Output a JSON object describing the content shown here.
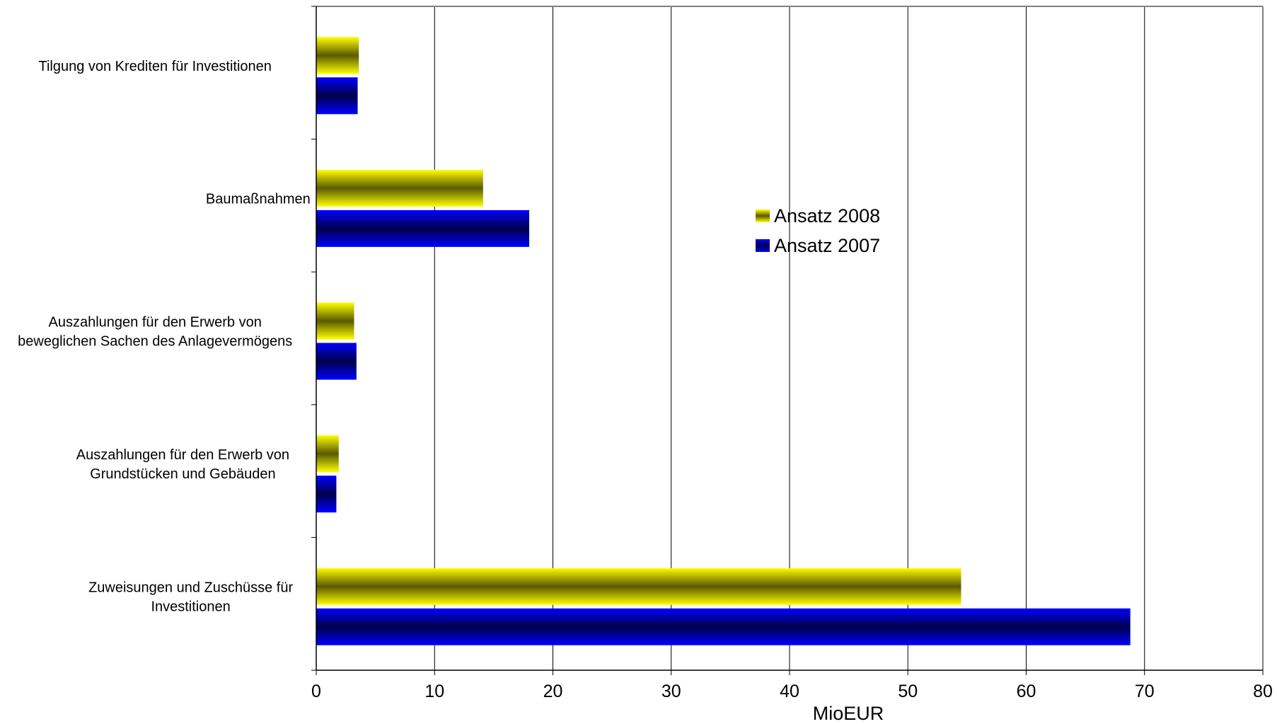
{
  "chart_data": {
    "type": "bar",
    "orientation": "horizontal",
    "title": "",
    "xlabel": "MioEUR",
    "ylabel": "",
    "xlim": [
      0,
      80
    ],
    "x_ticks": [
      "0",
      "10",
      "20",
      "30",
      "40",
      "50",
      "60",
      "70",
      "80"
    ],
    "grid": "vertical",
    "legend_position": "center",
    "categories": [
      [
        "Tilgung von Krediten für Investitionen"
      ],
      [
        "Baumaßnahmen"
      ],
      [
        "Auszahlungen für den Erwerb von",
        "beweglichen Sachen des Anlagevermögens"
      ],
      [
        "Auszahlungen für den Erwerb von",
        "Grundstücken und Gebäuden"
      ],
      [
        "Zuweisungen und Zuschüsse für",
        "Investitionen"
      ]
    ],
    "series": [
      {
        "name": "Ansatz 2008",
        "color": "#ffff00",
        "shade": "#5a5a00",
        "values": [
          3.6,
          14.1,
          3.2,
          1.9,
          54.5
        ]
      },
      {
        "name": "Ansatz 2007",
        "color": "#0000ff",
        "shade": "#00004a",
        "values": [
          3.5,
          18.0,
          3.4,
          1.7,
          68.8
        ]
      }
    ]
  }
}
